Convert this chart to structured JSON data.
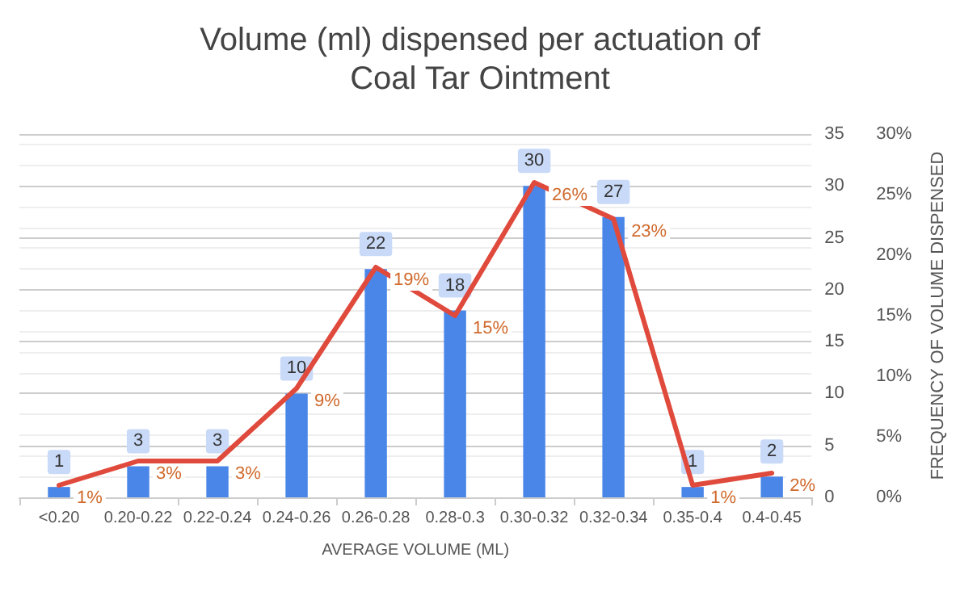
{
  "chart_data": {
    "type": "bar",
    "title": "Volume (ml) dispensed per actuation of\nCoal Tar Ointment",
    "xlabel": "AVERAGE VOLUME (ML)",
    "y2label": "FREQUENCY OF VOLUME DISPENSED",
    "categories": [
      "<0.20",
      "0.20-0.22",
      "0.22-0.24",
      "0.24-0.26",
      "0.26-0.28",
      "0.28-0.3",
      "0.30-0.32",
      "0.32-0.34",
      "0.35-0.4",
      "0.4-0.45"
    ],
    "series": [
      {
        "color": "#4a86e8",
        "values": [
          1,
          3,
          3,
          10,
          22,
          18,
          30,
          27,
          1,
          2
        ]
      },
      {
        "type": "line",
        "axis": "y2",
        "color": "#e04a3c",
        "values": [
          1,
          3,
          3,
          9,
          19,
          15,
          26,
          23,
          1,
          2
        ],
        "value_labels": [
          "1%",
          "3%",
          "3%",
          "9%",
          "19%",
          "15%",
          "26%",
          "23%",
          "1%",
          "2%"
        ]
      }
    ],
    "ylim": [
      0,
      35
    ],
    "yticks": [
      0,
      5,
      10,
      15,
      20,
      25,
      30,
      35
    ],
    "y2lim": [
      0,
      30
    ],
    "y2ticks": [
      {
        "value": 0,
        "label": "0%"
      },
      {
        "value": 5,
        "label": "5%"
      },
      {
        "value": 10,
        "label": "10%"
      },
      {
        "value": 15,
        "label": "15%"
      },
      {
        "value": 20,
        "label": "20%"
      },
      {
        "value": 25,
        "label": "25%"
      },
      {
        "value": 30,
        "label": "30%"
      }
    ],
    "data_labels": true,
    "grid": "y",
    "marker": "none",
    "line_style": "solid"
  }
}
